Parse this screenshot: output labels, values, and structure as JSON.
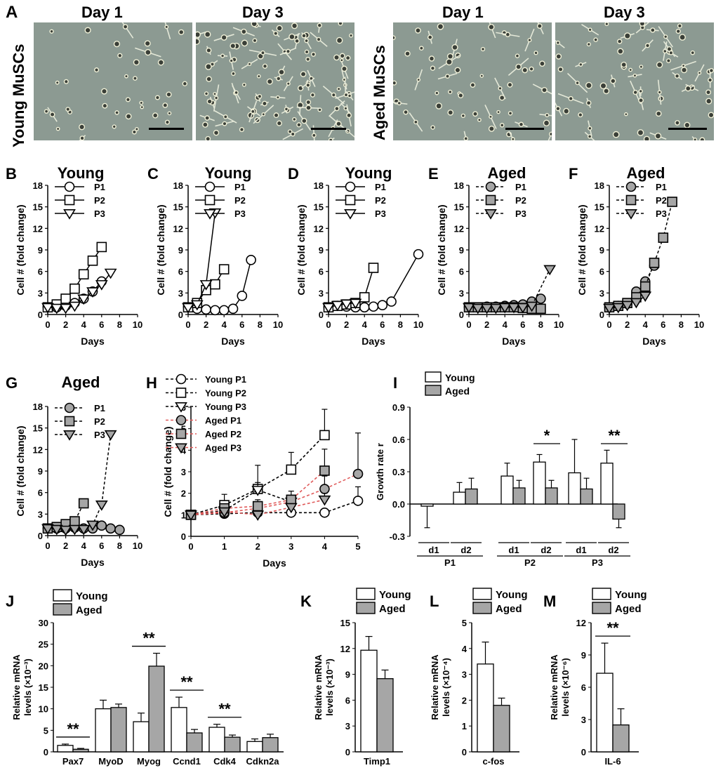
{
  "panelA": {
    "label": "A",
    "young_label": "Young MuSCs",
    "aged_label": "Aged MuSCs",
    "day1": "Day 1",
    "day3": "Day 3"
  },
  "growth_panels": [
    {
      "label": "B",
      "title": "Young",
      "group": "young",
      "xmax": 10,
      "xticks": [
        0,
        2,
        4,
        6,
        8,
        10
      ],
      "ymax": 18,
      "yticks": [
        0,
        3,
        6,
        9,
        12,
        15,
        18
      ],
      "ylabel": "Cell # (fold change)",
      "xlabel": "Days",
      "legend": [
        "P1",
        "P2",
        "P3"
      ],
      "series": [
        {
          "name": "P1",
          "marker": "circle",
          "x": [
            0,
            1,
            2,
            3,
            4,
            5,
            6
          ],
          "y": [
            1,
            1,
            1.2,
            1.6,
            2.2,
            3.2,
            4.6
          ]
        },
        {
          "name": "P2",
          "marker": "square",
          "x": [
            0,
            1,
            2,
            3,
            4,
            5,
            6
          ],
          "y": [
            1,
            1.4,
            2.2,
            3.6,
            5.6,
            7.5,
            9.4
          ]
        },
        {
          "name": "P3",
          "marker": "triangle",
          "x": [
            0,
            1,
            2,
            3,
            4,
            5,
            6,
            7
          ],
          "y": [
            1,
            0.9,
            0.9,
            1.2,
            2.2,
            3.2,
            4.2,
            5.8
          ]
        }
      ]
    },
    {
      "label": "C",
      "title": "Young",
      "group": "young",
      "xmax": 10,
      "xticks": [
        0,
        2,
        4,
        6,
        8,
        10
      ],
      "ymax": 18,
      "yticks": [
        0,
        3,
        6,
        9,
        12,
        15,
        18
      ],
      "ylabel": "Cell # (fold change)",
      "xlabel": "Days",
      "legend": [
        "P1",
        "P2",
        "P3"
      ],
      "series": [
        {
          "name": "P1",
          "marker": "circle",
          "x": [
            0,
            1,
            2,
            3,
            4,
            5,
            6,
            7
          ],
          "y": [
            1,
            0.8,
            0.7,
            0.6,
            0.6,
            0.8,
            2.6,
            7.6
          ]
        },
        {
          "name": "P2",
          "marker": "square",
          "x": [
            0,
            1,
            2,
            3,
            4
          ],
          "y": [
            1,
            1.6,
            3.4,
            4.2,
            6.3
          ]
        },
        {
          "name": "P3",
          "marker": "triangle",
          "x": [
            0,
            1,
            2,
            3
          ],
          "y": [
            1,
            1.4,
            4.2,
            14.2
          ]
        }
      ]
    },
    {
      "label": "D",
      "title": "Young",
      "group": "young",
      "xmax": 10,
      "xticks": [
        0,
        2,
        4,
        6,
        8,
        10
      ],
      "ymax": 18,
      "yticks": [
        0,
        3,
        6,
        9,
        12,
        15,
        18
      ],
      "ylabel": "Cell # (fold change)",
      "xlabel": "Days",
      "legend": [
        "P1",
        "P2",
        "P3"
      ],
      "series": [
        {
          "name": "P1",
          "marker": "circle",
          "x": [
            0,
            1,
            2,
            3,
            4,
            5,
            6,
            7,
            10
          ],
          "y": [
            1,
            1.2,
            1.1,
            1,
            1,
            1.1,
            1.3,
            1.8,
            8.4
          ]
        },
        {
          "name": "P2",
          "marker": "square",
          "x": [
            0,
            1,
            2,
            3,
            4,
            5
          ],
          "y": [
            1,
            1.2,
            1.4,
            1.6,
            2.4,
            6.5
          ]
        },
        {
          "name": "P3",
          "marker": "triangle",
          "x": [
            0,
            1,
            2,
            3
          ],
          "y": [
            1,
            1.3,
            1.5,
            1.6
          ]
        }
      ]
    },
    {
      "label": "E",
      "title": "Aged",
      "group": "aged",
      "xmax": 10,
      "xticks": [
        0,
        2,
        4,
        6,
        8,
        10
      ],
      "ymax": 18,
      "yticks": [
        0,
        3,
        6,
        9,
        12,
        15,
        18
      ],
      "ylabel": "Cell # (fold change)",
      "xlabel": "Days",
      "legend": [
        "P1",
        "P2",
        "P3"
      ],
      "series": [
        {
          "name": "P1",
          "marker": "circle",
          "x": [
            0,
            1,
            2,
            3,
            4,
            5,
            6,
            7,
            8
          ],
          "y": [
            1,
            1,
            1.1,
            1.1,
            1.2,
            1.3,
            1.4,
            1.8,
            2.2
          ]
        },
        {
          "name": "P2",
          "marker": "square",
          "x": [
            0,
            1,
            2,
            3,
            4,
            5,
            6,
            7,
            8
          ],
          "y": [
            1,
            1,
            1,
            1,
            1,
            1,
            0.9,
            0.8,
            0.8
          ]
        },
        {
          "name": "P3",
          "marker": "triangle",
          "x": [
            0,
            1,
            2,
            3,
            4,
            5,
            6,
            7,
            9
          ],
          "y": [
            1,
            0.9,
            0.9,
            0.9,
            1,
            1,
            1,
            1.2,
            6.3
          ]
        }
      ]
    },
    {
      "label": "F",
      "title": "Aged",
      "group": "aged",
      "xmax": 10,
      "xticks": [
        0,
        2,
        4,
        6,
        8,
        10
      ],
      "ymax": 18,
      "yticks": [
        0,
        3,
        6,
        9,
        12,
        15,
        18
      ],
      "ylabel": "Cell # (fold change)",
      "xlabel": "Days",
      "legend": [
        "P1",
        "P2",
        "P3"
      ],
      "series": [
        {
          "name": "P1",
          "marker": "circle",
          "x": [
            0,
            1,
            2,
            3,
            4,
            5
          ],
          "y": [
            1,
            1.2,
            1.5,
            3.2,
            4.6,
            6.8
          ]
        },
        {
          "name": "P2",
          "marker": "square",
          "x": [
            0,
            1,
            2,
            3,
            4,
            5,
            6,
            7
          ],
          "y": [
            1,
            1.2,
            1.6,
            2.4,
            3.9,
            7.2,
            10.7,
            15.7
          ]
        },
        {
          "name": "P3",
          "marker": "triangle",
          "x": [
            0,
            1,
            2,
            3,
            4
          ],
          "y": [
            0.9,
            1,
            1.3,
            1.7,
            2.6
          ]
        }
      ]
    },
    {
      "label": "G",
      "title": "Aged",
      "group": "aged",
      "xmax": 10,
      "xticks": [
        0,
        2,
        4,
        6,
        8,
        10
      ],
      "ymax": 18,
      "yticks": [
        0,
        3,
        6,
        9,
        12,
        15,
        18
      ],
      "ylabel": "Cell # (fold change)",
      "xlabel": "Days",
      "legend": [
        "P1",
        "P2",
        "P3"
      ],
      "series": [
        {
          "name": "P1",
          "marker": "circle",
          "x": [
            0,
            1,
            2,
            3,
            4,
            5,
            6,
            7,
            8
          ],
          "y": [
            1,
            1,
            1,
            1.1,
            1,
            1,
            1.4,
            1,
            0.8
          ]
        },
        {
          "name": "P2",
          "marker": "square",
          "x": [
            0,
            1,
            2,
            3,
            4
          ],
          "y": [
            1,
            1.2,
            1.6,
            2,
            4.5
          ]
        },
        {
          "name": "P3",
          "marker": "triangle",
          "x": [
            0,
            1,
            2,
            3,
            4,
            5,
            6,
            7
          ],
          "y": [
            1,
            0.9,
            0.8,
            0.9,
            0.9,
            1.5,
            4.3,
            14.1
          ]
        }
      ]
    }
  ],
  "panelH": {
    "label": "H",
    "xlabel": "Days",
    "ylabel": "Cell # (fold change)",
    "xmax": 5,
    "xticks": [
      0,
      1,
      2,
      3,
      4,
      5
    ],
    "ymax": 6,
    "yticks": [
      0,
      1,
      2,
      3,
      4,
      5,
      6
    ],
    "legend": [
      "Young P1",
      "Young P2",
      "Young P3",
      "Aged  P1",
      "Aged  P2",
      "Aged  P3"
    ],
    "series": [
      {
        "name": "Young P1",
        "marker": "circle",
        "group": "young",
        "x": [
          0,
          1,
          2,
          3,
          4,
          5
        ],
        "y": [
          1,
          1.05,
          1.1,
          1.1,
          1.1,
          1.65
        ],
        "err": [
          0,
          0.1,
          0.1,
          0.15,
          0.1,
          0.65
        ]
      },
      {
        "name": "Young P2",
        "marker": "square",
        "group": "young",
        "x": [
          0,
          1,
          2,
          3,
          4
        ],
        "y": [
          1,
          1.45,
          2.2,
          3.1,
          4.7
        ],
        "err": [
          0,
          0.5,
          1.1,
          0.8,
          1.2
        ]
      },
      {
        "name": "Young P3",
        "marker": "triangle",
        "group": "young",
        "x": [
          0,
          1,
          2,
          3
        ],
        "y": [
          1,
          1.2,
          2.15,
          1.6
        ],
        "err": [
          0,
          0.2,
          0.35,
          0.3
        ]
      },
      {
        "name": "Aged P1",
        "marker": "circle",
        "group": "aged",
        "x": [
          0,
          1,
          2,
          3,
          4,
          5
        ],
        "y": [
          1,
          1.1,
          1.3,
          1.6,
          2.2,
          2.9
        ],
        "err": [
          0,
          0.1,
          0.2,
          0.3,
          0.6,
          1.9
        ]
      },
      {
        "name": "Aged P2",
        "marker": "square",
        "group": "aged",
        "x": [
          0,
          1,
          2,
          3,
          4
        ],
        "y": [
          1,
          1.3,
          1.4,
          1.7,
          3.05
        ],
        "err": [
          0,
          0.1,
          0.3,
          0.4,
          1.0
        ]
      },
      {
        "name": "Aged P3",
        "marker": "triangle",
        "group": "aged",
        "x": [
          0,
          1,
          2,
          3,
          4
        ],
        "y": [
          1,
          1.15,
          1.0,
          1.35,
          1.7
        ],
        "err": [
          0,
          0.1,
          0.1,
          0.15,
          0.3
        ]
      }
    ]
  },
  "panelI": {
    "label": "I",
    "ylabel": "Growth rate r",
    "yticks": [
      -0.3,
      0,
      0.3,
      0.6,
      0.9
    ],
    "ymin": -0.3,
    "ymax": 0.9,
    "legend": [
      "Young",
      "Aged"
    ],
    "groups": [
      {
        "name": "P1",
        "subs": [
          {
            "name": "d1",
            "young": -0.02,
            "young_err": 0.2,
            "aged": 0.0,
            "aged_err": 0.0
          },
          {
            "name": "d2",
            "young": 0.11,
            "young_err": 0.09,
            "aged": 0.14,
            "aged_err": 0.1
          }
        ]
      },
      {
        "name": "P2",
        "subs": [
          {
            "name": "d1",
            "young": 0.26,
            "young_err": 0.12,
            "aged": 0.15,
            "aged_err": 0.07
          },
          {
            "name": "d2",
            "young": 0.39,
            "young_err": 0.07,
            "aged": 0.15,
            "aged_err": 0.07
          }
        ],
        "sig": "*"
      },
      {
        "name": "P3",
        "subs": [
          {
            "name": "d1",
            "young": 0.29,
            "young_err": 0.31,
            "aged": 0.14,
            "aged_err": 0.1
          },
          {
            "name": "d2",
            "young": 0.38,
            "young_err": 0.12,
            "aged": -0.14,
            "aged_err": 0.08
          }
        ],
        "sig": "**"
      }
    ]
  },
  "panelJ": {
    "label": "J",
    "ylabel": "Relative mRNA levels (×10⁻³)",
    "ymax": 30,
    "yticks": [
      0,
      5,
      10,
      15,
      20,
      25,
      30
    ],
    "legend": [
      "Young",
      "Aged"
    ],
    "categories": [
      "Pax7",
      "MyoD",
      "Myog",
      "Ccnd1",
      "Cdk4",
      "Cdkn2a"
    ],
    "young": [
      1.5,
      10,
      7,
      10.3,
      5.7,
      2.4
    ],
    "young_err": [
      0.3,
      2,
      2,
      2.4,
      0.7,
      0.6
    ],
    "aged": [
      0.6,
      10.3,
      19.9,
      4.4,
      3.4,
      3.3
    ],
    "aged_err": [
      0.2,
      0.8,
      3,
      0.8,
      0.5,
      0.8
    ],
    "sig": [
      "**",
      "",
      "**",
      "**",
      "**",
      ""
    ]
  },
  "small_bars": [
    {
      "label": "K",
      "ylabel": "Relative mRNA levels (×10⁻³)",
      "ymax": 15,
      "yticks": [
        0,
        3,
        6,
        9,
        12,
        15
      ],
      "category": "Timp1",
      "young": 11.8,
      "young_err": 1.6,
      "aged": 8.5,
      "aged_err": 1.0,
      "sig": "",
      "legend": [
        "Young",
        "Aged"
      ]
    },
    {
      "label": "L",
      "ylabel": "Relative mRNA levels (×10⁻⁴)",
      "ymax": 5,
      "yticks": [
        0,
        1,
        2,
        3,
        4,
        5
      ],
      "category": "c-fos",
      "young": 3.4,
      "young_err": 0.85,
      "aged": 1.8,
      "aged_err": 0.28,
      "sig": "",
      "legend": [
        "Young",
        "Aged"
      ]
    },
    {
      "label": "M",
      "ylabel": "Relative mRNA levels (×10⁻⁶)",
      "ymax": 12,
      "yticks": [
        0,
        3,
        6,
        9,
        12
      ],
      "category": "IL-6",
      "young": 7.3,
      "young_err": 2.8,
      "aged": 2.5,
      "aged_err": 1.5,
      "sig": "**",
      "legend": [
        "Young",
        "Aged"
      ]
    }
  ],
  "colors": {
    "young_fill": "#ffffff",
    "aged_fill": "#a6a6a6",
    "aged_line": "#e05a5a",
    "stroke": "#000000"
  }
}
